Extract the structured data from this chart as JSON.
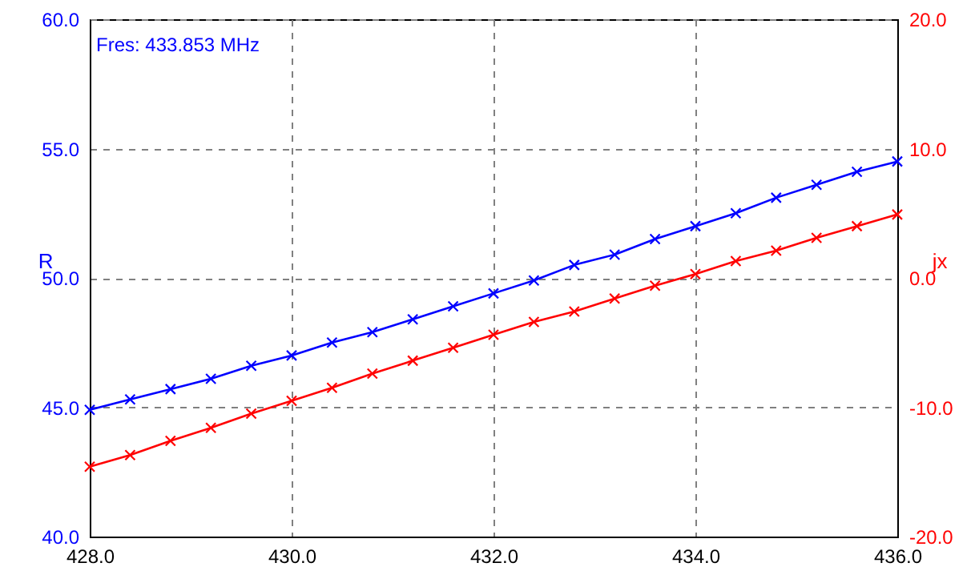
{
  "chart_data": {
    "type": "line",
    "ylabel": "R",
    "y2label": "jx",
    "annotations": [
      "Fres: 433.853 MHz"
    ],
    "x": [
      428.0,
      428.4,
      428.8,
      429.2,
      429.6,
      430.0,
      430.4,
      430.8,
      431.2,
      431.6,
      432.0,
      432.4,
      432.8,
      433.2,
      433.6,
      434.0,
      434.4,
      434.8,
      435.2,
      435.6,
      436.0
    ],
    "series": [
      {
        "color": "#0000ff",
        "values": [
          44.9,
          45.3,
          45.7,
          46.1,
          46.6,
          47.0,
          47.5,
          47.9,
          48.4,
          48.9,
          49.4,
          49.9,
          50.5,
          50.9,
          51.5,
          52.0,
          52.5,
          53.1,
          53.6,
          54.1,
          54.5
        ]
      },
      {
        "color": "#ff0000",
        "axis": "y2",
        "values": [
          -14.6,
          -13.7,
          -12.6,
          -11.6,
          -10.5,
          -9.5,
          -8.5,
          -7.4,
          -6.4,
          -5.4,
          -4.4,
          -3.4,
          -2.6,
          -1.6,
          -0.6,
          0.3,
          1.3,
          2.1,
          3.1,
          4.0,
          4.9
        ]
      }
    ],
    "xlim": [
      428,
      436
    ],
    "xticks": [
      {
        "value": 428,
        "label": "428.0"
      },
      {
        "value": 430,
        "label": "430.0"
      },
      {
        "value": 432,
        "label": "432.0"
      },
      {
        "value": 434,
        "label": "434.0"
      },
      {
        "value": 436,
        "label": "436.0"
      }
    ],
    "ylim": [
      40,
      60
    ],
    "yticks": [
      {
        "value": 40,
        "label": "40.0"
      },
      {
        "value": 45,
        "label": "45.0"
      },
      {
        "value": 50,
        "label": "50.0"
      },
      {
        "value": 55,
        "label": "55.0"
      },
      {
        "value": 60,
        "label": "60.0"
      }
    ],
    "y2lim": [
      -20,
      20
    ],
    "y2ticks": [
      {
        "value": -20,
        "label": "-20.0"
      },
      {
        "value": -10,
        "label": "-10.0"
      },
      {
        "value": 0,
        "label": "0.0"
      },
      {
        "value": 10,
        "label": "10.0"
      },
      {
        "value": 20,
        "label": "20.0"
      }
    ],
    "grid": true,
    "marker": "cross",
    "line_style": "solid"
  }
}
